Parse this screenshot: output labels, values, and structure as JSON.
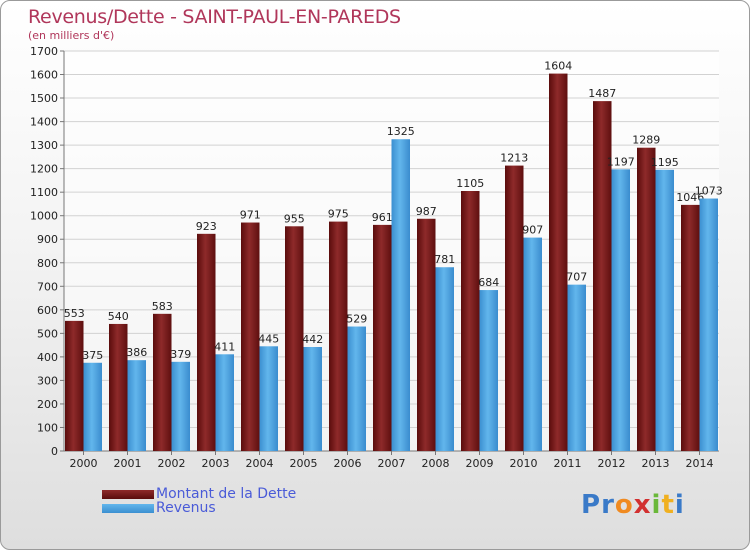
{
  "header": {
    "title": "Revenus/Dette - SAINT-PAUL-EN-PAREDS",
    "subtitle": "(en milliers d'€)"
  },
  "colors": {
    "debt": "#7a1a1a",
    "revenue": "#4ea6e0",
    "title": "#b0365a",
    "legend_text": "#4a5bd8"
  },
  "legend": {
    "debt_label": "Montant de la Dette",
    "revenue_label": "Revenus"
  },
  "logo": {
    "text": "Proxiti"
  },
  "chart_data": {
    "type": "bar",
    "title": "Revenus/Dette - SAINT-PAUL-EN-PAREDS",
    "subtitle": "(en milliers d'€)",
    "categories": [
      "2000",
      "2001",
      "2002",
      "2003",
      "2004",
      "2005",
      "2006",
      "2007",
      "2008",
      "2009",
      "2010",
      "2011",
      "2012",
      "2013",
      "2014"
    ],
    "series": [
      {
        "name": "Montant de la Dette",
        "values": [
          553,
          540,
          583,
          923,
          971,
          955,
          975,
          961,
          987,
          1105,
          1213,
          1604,
          1487,
          1289,
          1046
        ]
      },
      {
        "name": "Revenus",
        "values": [
          375,
          386,
          379,
          411,
          445,
          442,
          529,
          1325,
          781,
          684,
          907,
          707,
          1197,
          1195,
          1073
        ]
      }
    ],
    "value_labels": {
      "Montant de la Dette": [
        "553",
        "540",
        "583",
        "923",
        "971",
        "955",
        "975",
        "961",
        "987",
        "1105",
        "1213",
        "1604",
        "1487",
        "1289",
        "1046"
      ],
      "Revenus": [
        "375",
        "386",
        "379",
        "411",
        "445",
        "442",
        "529",
        "1325",
        "781",
        "684",
        "907",
        "707",
        "1197",
        "1195",
        "1073"
      ]
    },
    "ylim": [
      0,
      1700
    ],
    "ytick_step": 100,
    "grid": true,
    "legend_position": "bottom-left"
  }
}
